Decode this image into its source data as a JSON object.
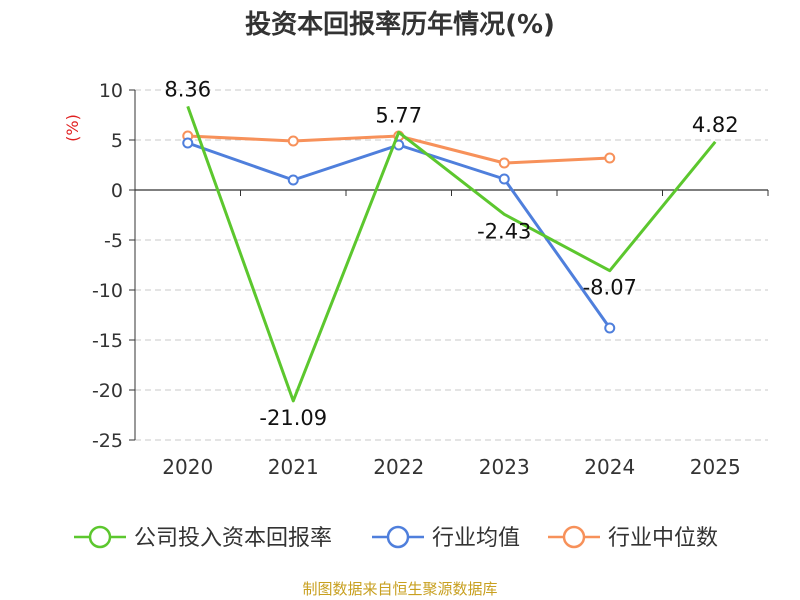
{
  "chart_data": {
    "type": "line",
    "title": "投资本回报率历年情况(%)",
    "ylabel": "(%)",
    "xlabel": "",
    "categories": [
      "2020",
      "2021",
      "2022",
      "2023",
      "2024",
      "2025"
    ],
    "ylim": [
      -25,
      10
    ],
    "yticks": [
      10,
      5,
      0,
      -5,
      -10,
      -15,
      -20,
      -25
    ],
    "grid": "horizontal-dashed",
    "legend_position": "bottom",
    "series": [
      {
        "name": "公司投入资本回报率",
        "values": [
          8.36,
          -21.09,
          5.77,
          -2.43,
          -8.07,
          4.82
        ],
        "labels": [
          "8.36",
          "-21.09",
          "5.77",
          "-2.43",
          "-8.07",
          "4.82"
        ],
        "color": "#5cc72e",
        "markers": "none"
      },
      {
        "name": "行业均值",
        "values": [
          4.7,
          1.0,
          4.5,
          1.1,
          -13.8,
          null
        ],
        "color": "#4f7fdc",
        "markers": "hollow-circle"
      },
      {
        "name": "行业中位数",
        "values": [
          5.4,
          4.9,
          5.4,
          2.7,
          3.2,
          null
        ],
        "color": "#f7915a",
        "markers": "hollow-circle"
      }
    ]
  },
  "source_note": "制图数据来自恒生聚源数据库"
}
